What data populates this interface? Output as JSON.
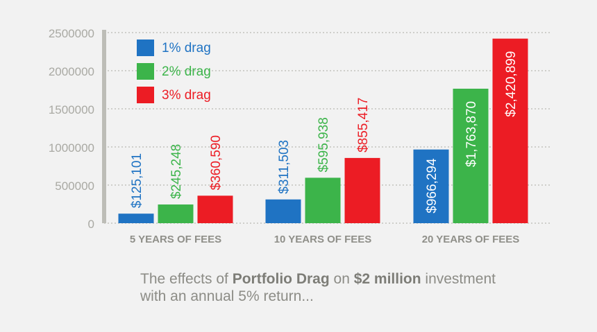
{
  "colors": {
    "background": "#f2f2f2",
    "axis": "#bdbdb7",
    "grid": "#b8b8b2",
    "tick_text": "#a9a9a3",
    "category_text": "#8f8f89"
  },
  "chart_data": {
    "type": "bar",
    "categories": [
      "5 YEARS OF FEES",
      "10 YEARS OF FEES",
      "20 YEARS OF FEES"
    ],
    "series": [
      {
        "name": "1% drag",
        "color": "#1f73c3",
        "values": [
          125101,
          311503,
          966294
        ],
        "labels": [
          "$125,101",
          "$311,503",
          "$966,294"
        ]
      },
      {
        "name": "2% drag",
        "color": "#3cb44a",
        "values": [
          245248,
          595938,
          1763870
        ],
        "labels": [
          "$245,248",
          "$595,938",
          "$1,763,870"
        ]
      },
      {
        "name": "3% drag",
        "color": "#ec1c24",
        "values": [
          360590,
          855417,
          2420899
        ],
        "labels": [
          "$360,590",
          "$855,417",
          "$2,420,899"
        ]
      }
    ],
    "ylim": [
      0,
      2500000
    ],
    "yticks": [
      "0",
      "500000",
      "1000000",
      "1500000",
      "2000000",
      "2500000"
    ],
    "grid": true,
    "legend_position": "top-left"
  },
  "caption": {
    "part1": "The effects of ",
    "bold1": "Portfolio Drag",
    "part2": " on ",
    "bold2": "$2 million",
    "part3": " investment",
    "line2": "with an annual 5% return..."
  }
}
